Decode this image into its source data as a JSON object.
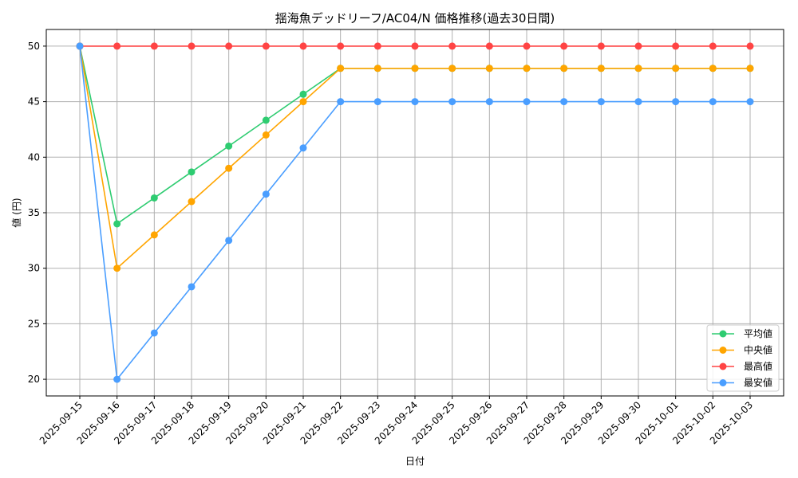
{
  "chart_data": {
    "type": "line",
    "title": "揺海魚デッドリーフ/AC04/N 価格推移(過去30日間)",
    "xlabel": "日付",
    "ylabel": "値 (円)",
    "ylim": [
      18.5,
      51.5
    ],
    "yticks": [
      20,
      25,
      30,
      35,
      40,
      45,
      50
    ],
    "grid": true,
    "legend_position": "bottom-right",
    "x": [
      "2025-09-15",
      "2025-09-16",
      "2025-09-17",
      "2025-09-18",
      "2025-09-19",
      "2025-09-20",
      "2025-09-21",
      "2025-09-22",
      "2025-09-23",
      "2025-09-24",
      "2025-09-25",
      "2025-09-26",
      "2025-09-27",
      "2025-09-28",
      "2025-09-29",
      "2025-09-30",
      "2025-10-01",
      "2025-10-02",
      "2025-10-03"
    ],
    "series": [
      {
        "name": "平均値",
        "color": "#2ecc71",
        "values": [
          50,
          34,
          36.33,
          38.67,
          41,
          43.33,
          45.67,
          48,
          48,
          48,
          48,
          48,
          48,
          48,
          48,
          48,
          48,
          48,
          48
        ]
      },
      {
        "name": "中央値",
        "color": "#ffa500",
        "values": [
          50,
          30,
          33,
          36,
          39,
          42,
          45,
          48,
          48,
          48,
          48,
          48,
          48,
          48,
          48,
          48,
          48,
          48,
          48
        ]
      },
      {
        "name": "最高値",
        "color": "#ff4444",
        "values": [
          50,
          50,
          50,
          50,
          50,
          50,
          50,
          50,
          50,
          50,
          50,
          50,
          50,
          50,
          50,
          50,
          50,
          50,
          50
        ]
      },
      {
        "name": "最安値",
        "color": "#4a9eff",
        "values": [
          50,
          20,
          24.17,
          28.33,
          32.5,
          36.67,
          40.83,
          45,
          45,
          45,
          45,
          45,
          45,
          45,
          45,
          45,
          45,
          45,
          45
        ]
      }
    ]
  }
}
